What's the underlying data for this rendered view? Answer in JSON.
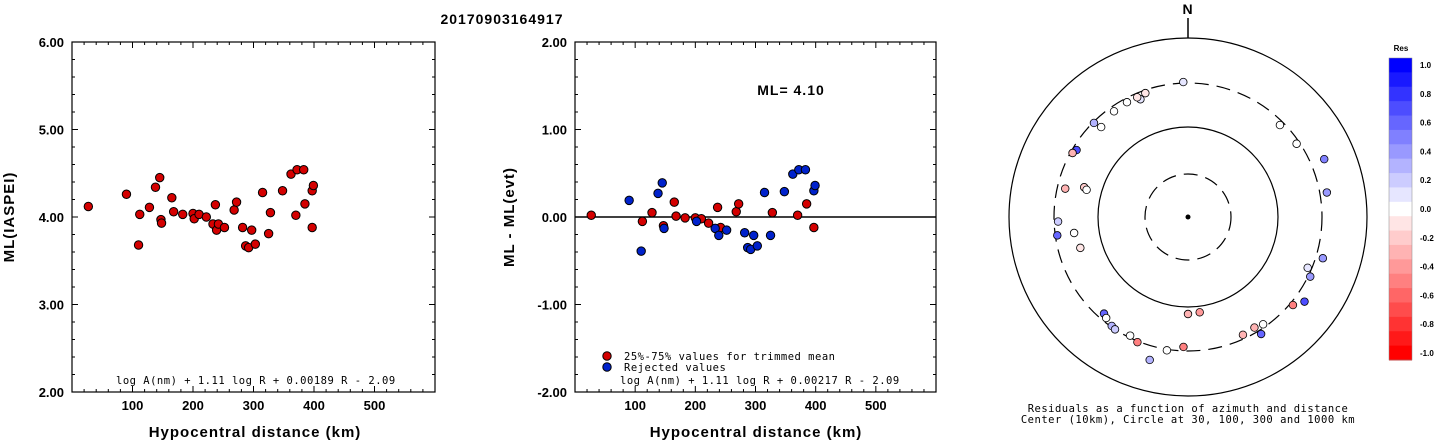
{
  "title": "20170903164917",
  "chart_data": [
    {
      "type": "scatter",
      "xlabel": "Hypocentral distance (km)",
      "ylabel": "ML(IASPEI)",
      "xlim": [
        0,
        600
      ],
      "ylim": [
        2.0,
        6.0
      ],
      "x_ticks": [
        "100",
        "200",
        "300",
        "400",
        "500"
      ],
      "y_ticks": [
        "2.00",
        "3.00",
        "4.00",
        "5.00",
        "6.00"
      ],
      "formula": "log A(nm) + 1.11 log R + 0.00189 R - 2.09",
      "series": [
        {
          "color": "#d40000",
          "points": [
            [
              27,
              4.12
            ],
            [
              90,
              4.26
            ],
            [
              110,
              3.68
            ],
            [
              112,
              4.03
            ],
            [
              128,
              4.11
            ],
            [
              138,
              4.34
            ],
            [
              145,
              4.45
            ],
            [
              147,
              3.97
            ],
            [
              148,
              3.93
            ],
            [
              165,
              4.22
            ],
            [
              168,
              4.06
            ],
            [
              183,
              4.03
            ],
            [
              200,
              4.04
            ],
            [
              202,
              3.98
            ],
            [
              210,
              4.03
            ],
            [
              222,
              4.0
            ],
            [
              233,
              3.92
            ],
            [
              237,
              4.14
            ],
            [
              239,
              3.85
            ],
            [
              242,
              3.92
            ],
            [
              252,
              3.88
            ],
            [
              268,
              4.08
            ],
            [
              272,
              4.17
            ],
            [
              282,
              3.88
            ],
            [
              287,
              3.67
            ],
            [
              292,
              3.65
            ],
            [
              297,
              3.85
            ],
            [
              303,
              3.69
            ],
            [
              315,
              4.28
            ],
            [
              325,
              3.81
            ],
            [
              328,
              4.05
            ],
            [
              348,
              4.3
            ],
            [
              362,
              4.49
            ],
            [
              370,
              4.02
            ],
            [
              372,
              4.54
            ],
            [
              383,
              4.54
            ],
            [
              385,
              4.15
            ],
            [
              397,
              3.88
            ],
            [
              397,
              4.3
            ],
            [
              399,
              4.36
            ]
          ]
        }
      ]
    },
    {
      "type": "scatter",
      "xlabel": "Hypocentral distance (km)",
      "ylabel": "ML - ML(evt)",
      "xlim": [
        0,
        600
      ],
      "ylim": [
        -2.0,
        2.0
      ],
      "x_ticks": [
        "100",
        "200",
        "300",
        "400",
        "500"
      ],
      "y_ticks": [
        "-2.00",
        "-1.00",
        "0.00",
        "1.00",
        "2.00"
      ],
      "annotation": "ML= 4.10",
      "formula": "log A(nm) + 1.11 log R + 0.00217 R - 2.09",
      "legend": "bottom-left",
      "series": [
        {
          "name": "25%-75% values for trimmed mean",
          "color": "#d40000",
          "points": [
            [
              27,
              0.02
            ],
            [
              112,
              -0.05
            ],
            [
              128,
              0.05
            ],
            [
              147,
              -0.1
            ],
            [
              165,
              0.17
            ],
            [
              168,
              0.01
            ],
            [
              183,
              -0.01
            ],
            [
              200,
              -0.01
            ],
            [
              210,
              -0.02
            ],
            [
              222,
              -0.07
            ],
            [
              237,
              0.11
            ],
            [
              242,
              -0.12
            ],
            [
              268,
              0.06
            ],
            [
              272,
              0.15
            ],
            [
              328,
              0.05
            ],
            [
              370,
              0.02
            ],
            [
              385,
              0.15
            ],
            [
              397,
              -0.12
            ]
          ]
        },
        {
          "name": "Rejected values",
          "color": "#0022cc",
          "points": [
            [
              90,
              0.19
            ],
            [
              110,
              -0.39
            ],
            [
              138,
              0.27
            ],
            [
              145,
              0.39
            ],
            [
              148,
              -0.13
            ],
            [
              202,
              -0.05
            ],
            [
              233,
              -0.13
            ],
            [
              239,
              -0.21
            ],
            [
              252,
              -0.15
            ],
            [
              282,
              -0.18
            ],
            [
              287,
              -0.35
            ],
            [
              292,
              -0.37
            ],
            [
              297,
              -0.21
            ],
            [
              303,
              -0.33
            ],
            [
              315,
              0.28
            ],
            [
              325,
              -0.21
            ],
            [
              348,
              0.29
            ],
            [
              362,
              0.49
            ],
            [
              372,
              0.54
            ],
            [
              383,
              0.54
            ],
            [
              397,
              0.3
            ],
            [
              399,
              0.36
            ]
          ]
        }
      ]
    },
    {
      "type": "scatter",
      "north_label": "N",
      "caption_line1": "Residuals as a function of azimuth and distance",
      "caption_line2": "Center (10km), Circle at 30, 100, 300 and 1000 km",
      "colorbar_title": "Res",
      "colorbar_ticks": [
        "1.0",
        "0.8",
        "0.6",
        "0.4",
        "0.2",
        "0.0",
        "-0.2",
        "-0.4",
        "-0.6",
        "-0.8",
        "-1.0"
      ],
      "points": [
        [
          -2,
          135,
          0.1
        ],
        [
          -19,
          131,
          -0.1
        ],
        [
          -22,
          127,
          0.1
        ],
        [
          -23,
          130,
          -0.1
        ],
        [
          -28,
          130,
          0
        ],
        [
          -35,
          129,
          0
        ],
        [
          -44,
          125,
          0
        ],
        [
          -45,
          133,
          0.3
        ],
        [
          -59,
          130,
          0.7
        ],
        [
          -61,
          132,
          -0.3
        ],
        [
          -74,
          108,
          -0.2
        ],
        [
          -75,
          105,
          0
        ],
        [
          -77,
          126,
          -0.3
        ],
        [
          -92,
          130,
          0.2
        ],
        [
          -98,
          132,
          0.6
        ],
        [
          -98,
          115,
          0
        ],
        [
          -106,
          112,
          -0.1
        ],
        [
          -139,
          128,
          0.6
        ],
        [
          -141,
          130,
          0
        ],
        [
          -145,
          133,
          0.3
        ],
        [
          -147,
          134,
          0.2
        ],
        [
          -154,
          132,
          0
        ],
        [
          -158,
          135,
          -0.5
        ],
        [
          -165,
          148,
          0.3
        ],
        [
          -171,
          135,
          0
        ],
        [
          -178,
          130,
          -0.5
        ],
        [
          -180,
          97,
          -0.3
        ],
        [
          -187,
          96,
          -0.4
        ],
        [
          -212,
          138,
          0.6
        ],
        [
          -215,
          131,
          0
        ],
        [
          -230,
          137,
          -0.5
        ],
        [
          -234,
          144,
          0.7
        ],
        [
          -247,
          130,
          0.1
        ],
        [
          -293,
          148,
          0.5
        ],
        [
          -304,
          131,
          0
        ],
        [
          155,
          130,
          -0.3
        ],
        [
          149,
          129,
          -0.3
        ],
        [
          107,
          141,
          0.4
        ],
        [
          116,
          136,
          0.4
        ],
        [
          80,
          141,
          0.4
        ],
        [
          45,
          130,
          0
        ]
      ]
    }
  ]
}
